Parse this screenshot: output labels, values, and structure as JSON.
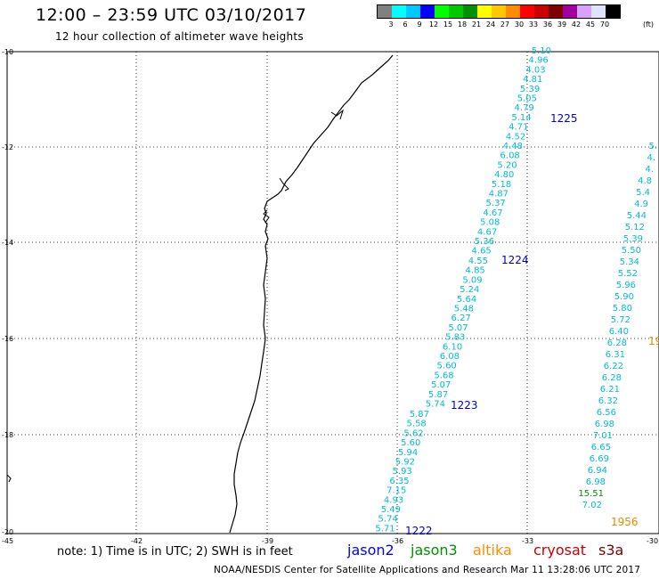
{
  "header": {
    "title": "12:00 – 23:59 UTC 03/10/2017",
    "subtitle": "12 hour collection of altimeter wave heights"
  },
  "legend": {
    "colors": [
      "#808080",
      "#00ffff",
      "#00c8ff",
      "#0000ff",
      "#00ff00",
      "#00c800",
      "#009000",
      "#ffff00",
      "#ffc800",
      "#ff8c00",
      "#ff0000",
      "#c80000",
      "#800000",
      "#a000a0",
      "#d8a0ff",
      "#e0e0ff",
      "#000000"
    ],
    "labels": [
      "3",
      "6",
      "9",
      "12",
      "15",
      "18",
      "21",
      "24",
      "27",
      "30",
      "33",
      "36",
      "39",
      "42",
      "45",
      "70"
    ],
    "unit": "(ft)"
  },
  "axes": {
    "lat_labels": [
      "-10",
      "-12",
      "-14",
      "-16",
      "-18",
      "-20"
    ],
    "lon_labels": [
      "-45",
      "-42",
      "-39",
      "-36",
      "-33",
      "-30"
    ]
  },
  "tracks": [
    {
      "id": "1225",
      "color": "#00bcd8",
      "label_color": "#0000cc",
      "values": [
        "5.10",
        "4.96",
        "4.03",
        "4.81",
        "5.39",
        "5.05",
        "4.79",
        "5.14",
        "4.71",
        "4.52",
        "4.48",
        "6.08",
        "5.20",
        "4.80",
        "5.18",
        "4.87",
        "5.37",
        "4.67",
        "5.08",
        "4.67",
        "5.36",
        "4.65"
      ]
    },
    {
      "id": "1224",
      "color": "#00bcd8",
      "label_color": "#0000cc",
      "values": [
        "4.55",
        "4.85",
        "5.09",
        "5.24",
        "5.64",
        "5.48",
        "6.27",
        "5.07",
        "5.83",
        "6.10",
        "6.08",
        "5.60",
        "5.68",
        "5.07",
        "5.87",
        "5.74"
      ]
    },
    {
      "id": "1223",
      "color": "#00bcd8",
      "label_color": "#0000cc",
      "values": [
        "5.87",
        "5.58",
        "5.62",
        "5.60",
        "5.94",
        "5.92",
        "5.93",
        "6.35",
        "7.15",
        "4.93",
        "5.49",
        "5.74",
        "5.71"
      ]
    },
    {
      "id": "1222",
      "label_color": "#0000cc"
    },
    {
      "id": "1956",
      "color": "#00bcd8",
      "label_color": "#e08c00",
      "values": [
        "5.",
        "4.",
        "4.",
        "4.8",
        "5.4",
        "4.9",
        "5.44",
        "5.12",
        "5.39",
        "5.50",
        "5.34",
        "5.52",
        "5.96",
        "5.90",
        "5.80",
        "5.72",
        "6.40",
        "6.28",
        "6.31",
        "6.22",
        "6.28",
        "6.21",
        "6.32",
        "6.56",
        "6.98",
        "7.01",
        "6.65",
        "6.69",
        "6.94",
        "6.98",
        "15.51",
        "7.02"
      ],
      "highlight": {
        "15.51": "#009000"
      },
      "edge_label": "19"
    }
  ],
  "satellites": [
    {
      "name": "jason2",
      "color": "#0000ff"
    },
    {
      "name": "jason3",
      "color": "#009000"
    },
    {
      "name": "altika",
      "color": "#ff8c00"
    },
    {
      "name": "cryosat",
      "color": "#c80000"
    },
    {
      "name": "s3a",
      "color": "#800000"
    }
  ],
  "note": "note: 1) Time is in UTC; 2) SWH is in feet",
  "footer": "NOAA/NESDIS Center for Satellite Applications and Research     Mar 11 13:28:06 UTC 2017"
}
